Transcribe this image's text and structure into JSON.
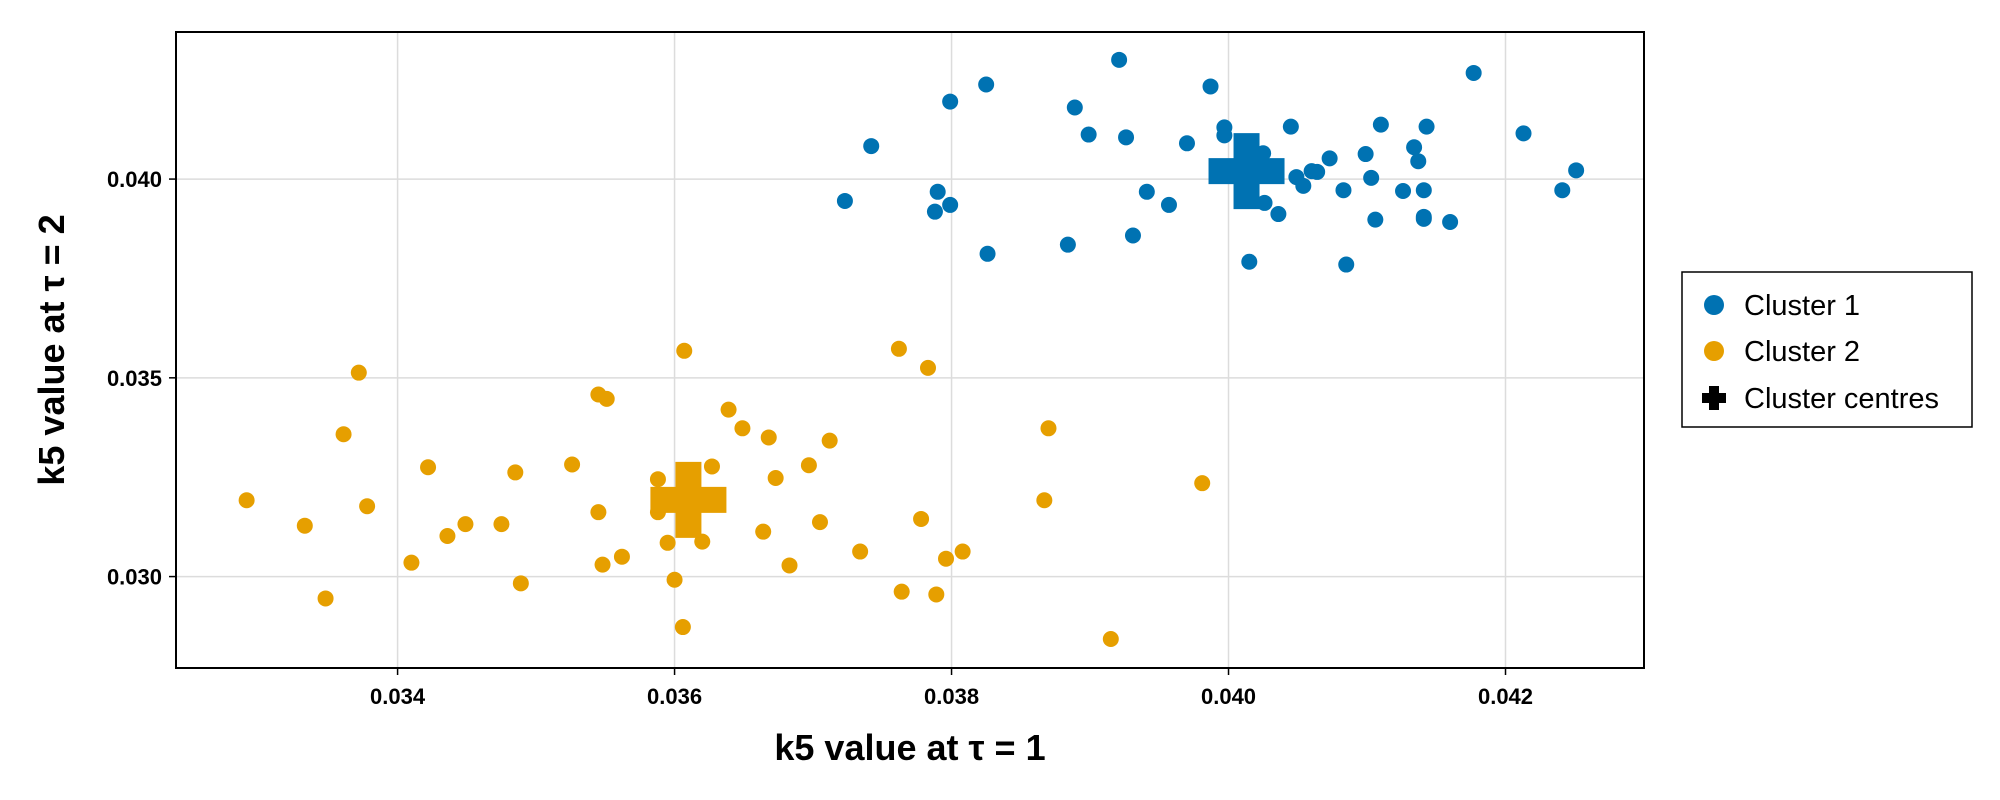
{
  "chart_data": {
    "type": "scatter",
    "xlabel": "k5 value at τ = 1",
    "ylabel": "k5 value at τ = 2",
    "xlim": [
      0.0324,
      0.043
    ],
    "ylim": [
      0.0277,
      0.0437
    ],
    "xticks": [
      0.034,
      0.036,
      0.038,
      0.04,
      0.042
    ],
    "yticks": [
      0.03,
      0.035,
      0.04
    ],
    "xtick_labels": [
      "0.034",
      "0.036",
      "0.038",
      "0.040",
      "0.042"
    ],
    "ytick_labels": [
      "0.030",
      "0.035",
      "0.040"
    ],
    "grid": true,
    "legend_position": "right",
    "series": [
      {
        "name": "Cluster 1",
        "color": "#0072b2",
        "marker": "circle",
        "points": [
          [
            0.03723,
            0.03945
          ],
          [
            0.03742,
            0.04083
          ],
          [
            0.03788,
            0.03918
          ],
          [
            0.0379,
            0.03968
          ],
          [
            0.03799,
            0.03935
          ],
          [
            0.03799,
            0.04195
          ],
          [
            0.03826,
            0.03812
          ],
          [
            0.03825,
            0.04238
          ],
          [
            0.03884,
            0.03835
          ],
          [
            0.03889,
            0.0418
          ],
          [
            0.03899,
            0.04112
          ],
          [
            0.03921,
            0.043
          ],
          [
            0.03926,
            0.04105
          ],
          [
            0.03931,
            0.03858
          ],
          [
            0.03941,
            0.03968
          ],
          [
            0.03957,
            0.03935
          ],
          [
            0.0397,
            0.0409
          ],
          [
            0.03987,
            0.04233
          ],
          [
            0.03997,
            0.0413
          ],
          [
            0.03997,
            0.0411
          ],
          [
            0.04015,
            0.03792
          ],
          [
            0.04025,
            0.04065
          ],
          [
            0.04026,
            0.0394
          ],
          [
            0.04036,
            0.03912
          ],
          [
            0.04045,
            0.04132
          ],
          [
            0.04049,
            0.04005
          ],
          [
            0.04054,
            0.03983
          ],
          [
            0.0406,
            0.0402
          ],
          [
            0.04064,
            0.04018
          ],
          [
            0.04073,
            0.04052
          ],
          [
            0.04083,
            0.03972
          ],
          [
            0.04085,
            0.03785
          ],
          [
            0.04099,
            0.04063
          ],
          [
            0.04103,
            0.04003
          ],
          [
            0.04106,
            0.03898
          ],
          [
            0.0411,
            0.04137
          ],
          [
            0.04126,
            0.0397
          ],
          [
            0.04134,
            0.0408
          ],
          [
            0.04137,
            0.04045
          ],
          [
            0.04141,
            0.03972
          ],
          [
            0.04141,
            0.03905
          ],
          [
            0.04141,
            0.039
          ],
          [
            0.04143,
            0.04132
          ],
          [
            0.0416,
            0.03892
          ],
          [
            0.04177,
            0.04267
          ],
          [
            0.04213,
            0.04115
          ],
          [
            0.04241,
            0.03972
          ],
          [
            0.04251,
            0.04022
          ]
        ]
      },
      {
        "name": "Cluster 2",
        "color": "#e69f00",
        "marker": "circle",
        "points": [
          [
            0.03291,
            0.03192
          ],
          [
            0.03333,
            0.03128
          ],
          [
            0.03348,
            0.02945
          ],
          [
            0.03361,
            0.03358
          ],
          [
            0.03372,
            0.03513
          ],
          [
            0.03378,
            0.03177
          ],
          [
            0.0341,
            0.03035
          ],
          [
            0.03422,
            0.03275
          ],
          [
            0.03436,
            0.03102
          ],
          [
            0.03449,
            0.03132
          ],
          [
            0.03475,
            0.03132
          ],
          [
            0.03485,
            0.03262
          ],
          [
            0.03489,
            0.02983
          ],
          [
            0.03526,
            0.03282
          ],
          [
            0.03545,
            0.03162
          ],
          [
            0.03545,
            0.03458
          ],
          [
            0.03548,
            0.0303
          ],
          [
            0.03551,
            0.03447
          ],
          [
            0.03562,
            0.0305
          ],
          [
            0.03588,
            0.03245
          ],
          [
            0.03588,
            0.03162
          ],
          [
            0.03595,
            0.03085
          ],
          [
            0.036,
            0.02992
          ],
          [
            0.03606,
            0.02873
          ],
          [
            0.03607,
            0.03568
          ],
          [
            0.0362,
            0.03088
          ],
          [
            0.03627,
            0.03277
          ],
          [
            0.03639,
            0.0342
          ],
          [
            0.03649,
            0.03373
          ],
          [
            0.03664,
            0.03113
          ],
          [
            0.03668,
            0.0335
          ],
          [
            0.03673,
            0.03248
          ],
          [
            0.03683,
            0.03028
          ],
          [
            0.03697,
            0.0328
          ],
          [
            0.03705,
            0.03137
          ],
          [
            0.03712,
            0.03342
          ],
          [
            0.03734,
            0.03063
          ],
          [
            0.03762,
            0.03573
          ],
          [
            0.03764,
            0.02962
          ],
          [
            0.03778,
            0.03145
          ],
          [
            0.03783,
            0.03525
          ],
          [
            0.03789,
            0.02955
          ],
          [
            0.03796,
            0.03045
          ],
          [
            0.03808,
            0.03063
          ],
          [
            0.03867,
            0.03192
          ],
          [
            0.0387,
            0.03373
          ],
          [
            0.03915,
            0.02843
          ],
          [
            0.03981,
            0.03235
          ]
        ]
      },
      {
        "name": "Cluster centres",
        "color": "#000000",
        "marker": "cross",
        "points": [
          [
            0.04013,
            0.0402
          ],
          [
            0.0361,
            0.03193
          ]
        ],
        "point_colors": [
          "#0072b2",
          "#e69f00"
        ]
      }
    ]
  }
}
